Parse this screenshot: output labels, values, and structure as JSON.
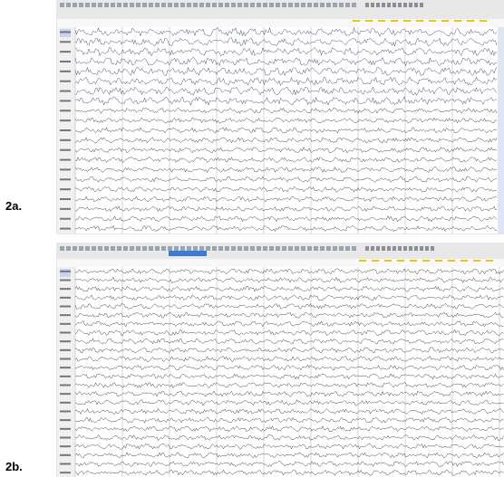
{
  "panels": [
    {
      "label": "2a."
    },
    {
      "label": "2b."
    }
  ]
}
